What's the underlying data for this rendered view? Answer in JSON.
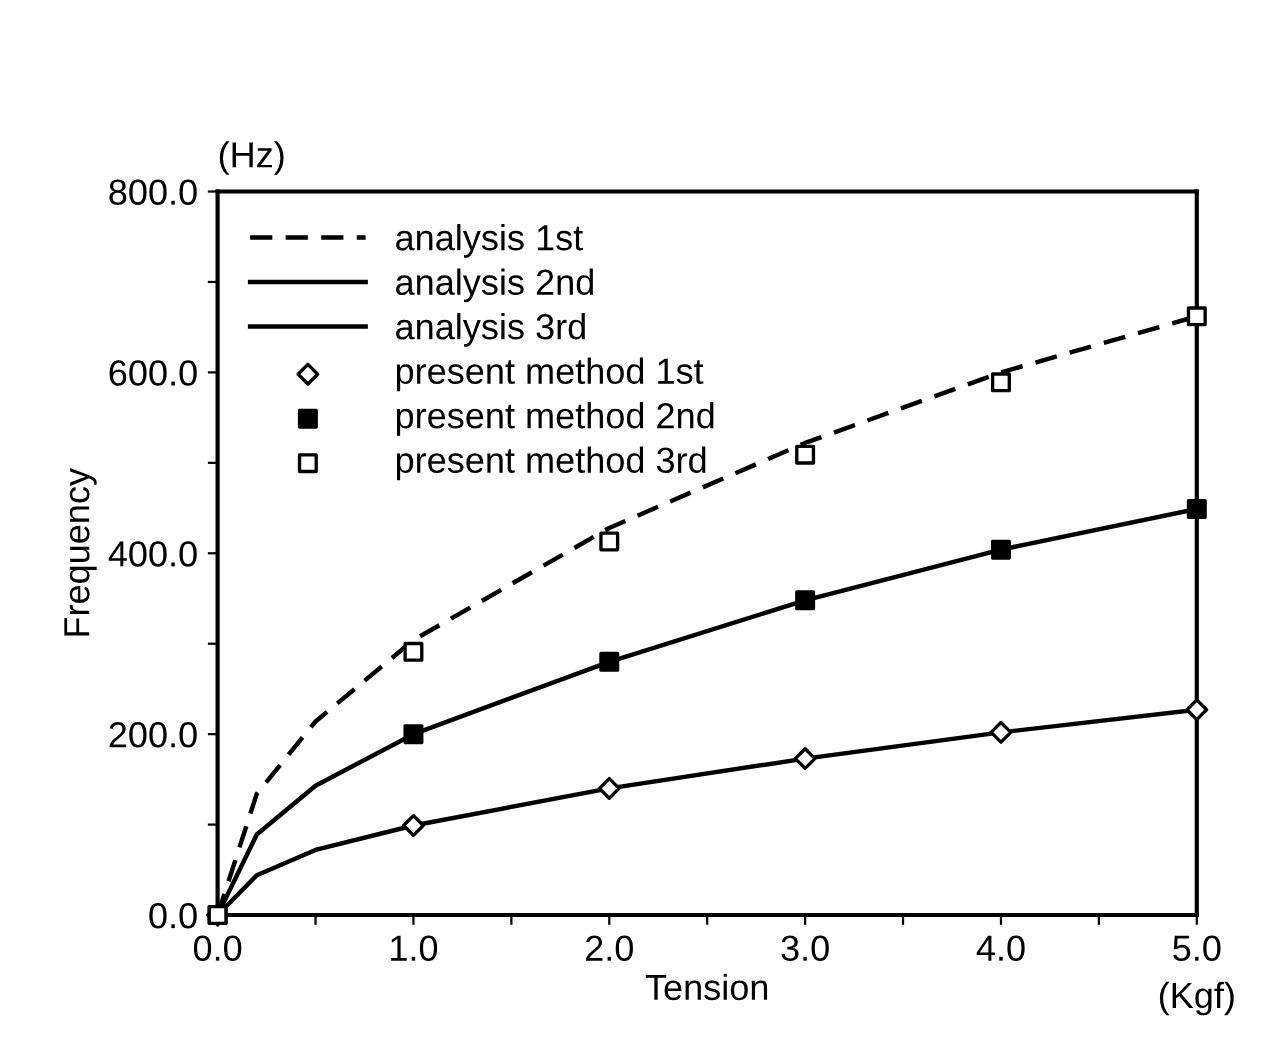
{
  "chart_data": {
    "type": "line",
    "xlabel": "Tension",
    "ylabel": "Frequency",
    "annotations": [
      "(Hz)",
      "(Kgf)"
    ],
    "xlim": [
      0,
      5
    ],
    "ylim": [
      0,
      800
    ],
    "xticks": [
      {
        "value": 0,
        "label": "0.0"
      },
      {
        "value": 0.5,
        "label": null
      },
      {
        "value": 1,
        "label": "1.0"
      },
      {
        "value": 1.5,
        "label": null
      },
      {
        "value": 2,
        "label": "2.0"
      },
      {
        "value": 2.5,
        "label": null
      },
      {
        "value": 3,
        "label": "3.0"
      },
      {
        "value": 3.5,
        "label": null
      },
      {
        "value": 4,
        "label": "4.0"
      },
      {
        "value": 4.5,
        "label": null
      },
      {
        "value": 5,
        "label": "5.0"
      }
    ],
    "yticks": [
      {
        "value": 0,
        "label": "0.0"
      },
      {
        "value": 100,
        "label": null
      },
      {
        "value": 200,
        "label": "200.0"
      },
      {
        "value": 300,
        "label": null
      },
      {
        "value": 400,
        "label": "400.0"
      },
      {
        "value": 500,
        "label": null
      },
      {
        "value": 600,
        "label": "600.0"
      },
      {
        "value": 700,
        "label": null
      },
      {
        "value": 800,
        "label": "800.0"
      }
    ],
    "grid": false,
    "legend": "top left",
    "series": [
      {
        "name": "analysis 1st",
        "line_style": "dashed",
        "marker": "none",
        "color": "#000000",
        "x": [
          0,
          0.2,
          0.5,
          1,
          2,
          3,
          4,
          5
        ],
        "values": [
          0,
          134,
          214,
          304,
          428,
          522,
          600,
          662
        ]
      },
      {
        "name": "analysis 2nd",
        "line_style": "solid",
        "marker": "none",
        "color": "#000000",
        "x": [
          0,
          0.2,
          0.5,
          1,
          2,
          3,
          4,
          5
        ],
        "values": [
          0,
          89,
          143,
          200,
          280,
          348,
          404,
          449
        ]
      },
      {
        "name": "analysis 3rd",
        "line_style": "solid",
        "marker": "none",
        "color": "#000000",
        "x": [
          0,
          0.2,
          0.5,
          1,
          2,
          3,
          4,
          5
        ],
        "values": [
          0,
          44,
          72,
          99,
          140,
          173,
          202,
          227
        ]
      },
      {
        "name": "present method 1st",
        "type": "scatter",
        "marker": "diamond",
        "color": "#000000",
        "colors": [
          "#ffffff",
          "#ffffff",
          "#ffffff",
          "#ffffff",
          "#ffffff",
          "#ffffff"
        ],
        "x": [
          0,
          1,
          2,
          3,
          4,
          5
        ],
        "values": [
          0,
          99,
          140,
          173,
          202,
          227
        ]
      },
      {
        "name": "present method 2nd",
        "type": "scatter",
        "marker": "square",
        "color": "#000000",
        "colors": [
          "#000000",
          "#000000",
          "#000000",
          "#000000",
          "#000000",
          "#000000"
        ],
        "x": [
          0,
          1,
          2,
          3,
          4,
          5
        ],
        "values": [
          0,
          200,
          280,
          348,
          404,
          449
        ]
      },
      {
        "name": "present method 3rd",
        "type": "scatter",
        "marker": "square",
        "color": "#000000",
        "colors": [
          "#ffffff",
          "#ffffff",
          "#ffffff",
          "#ffffff",
          "#ffffff",
          "#ffffff"
        ],
        "x": [
          0,
          1,
          2,
          3,
          4,
          5
        ],
        "values": [
          0,
          291,
          413,
          509,
          589,
          662
        ]
      }
    ]
  }
}
